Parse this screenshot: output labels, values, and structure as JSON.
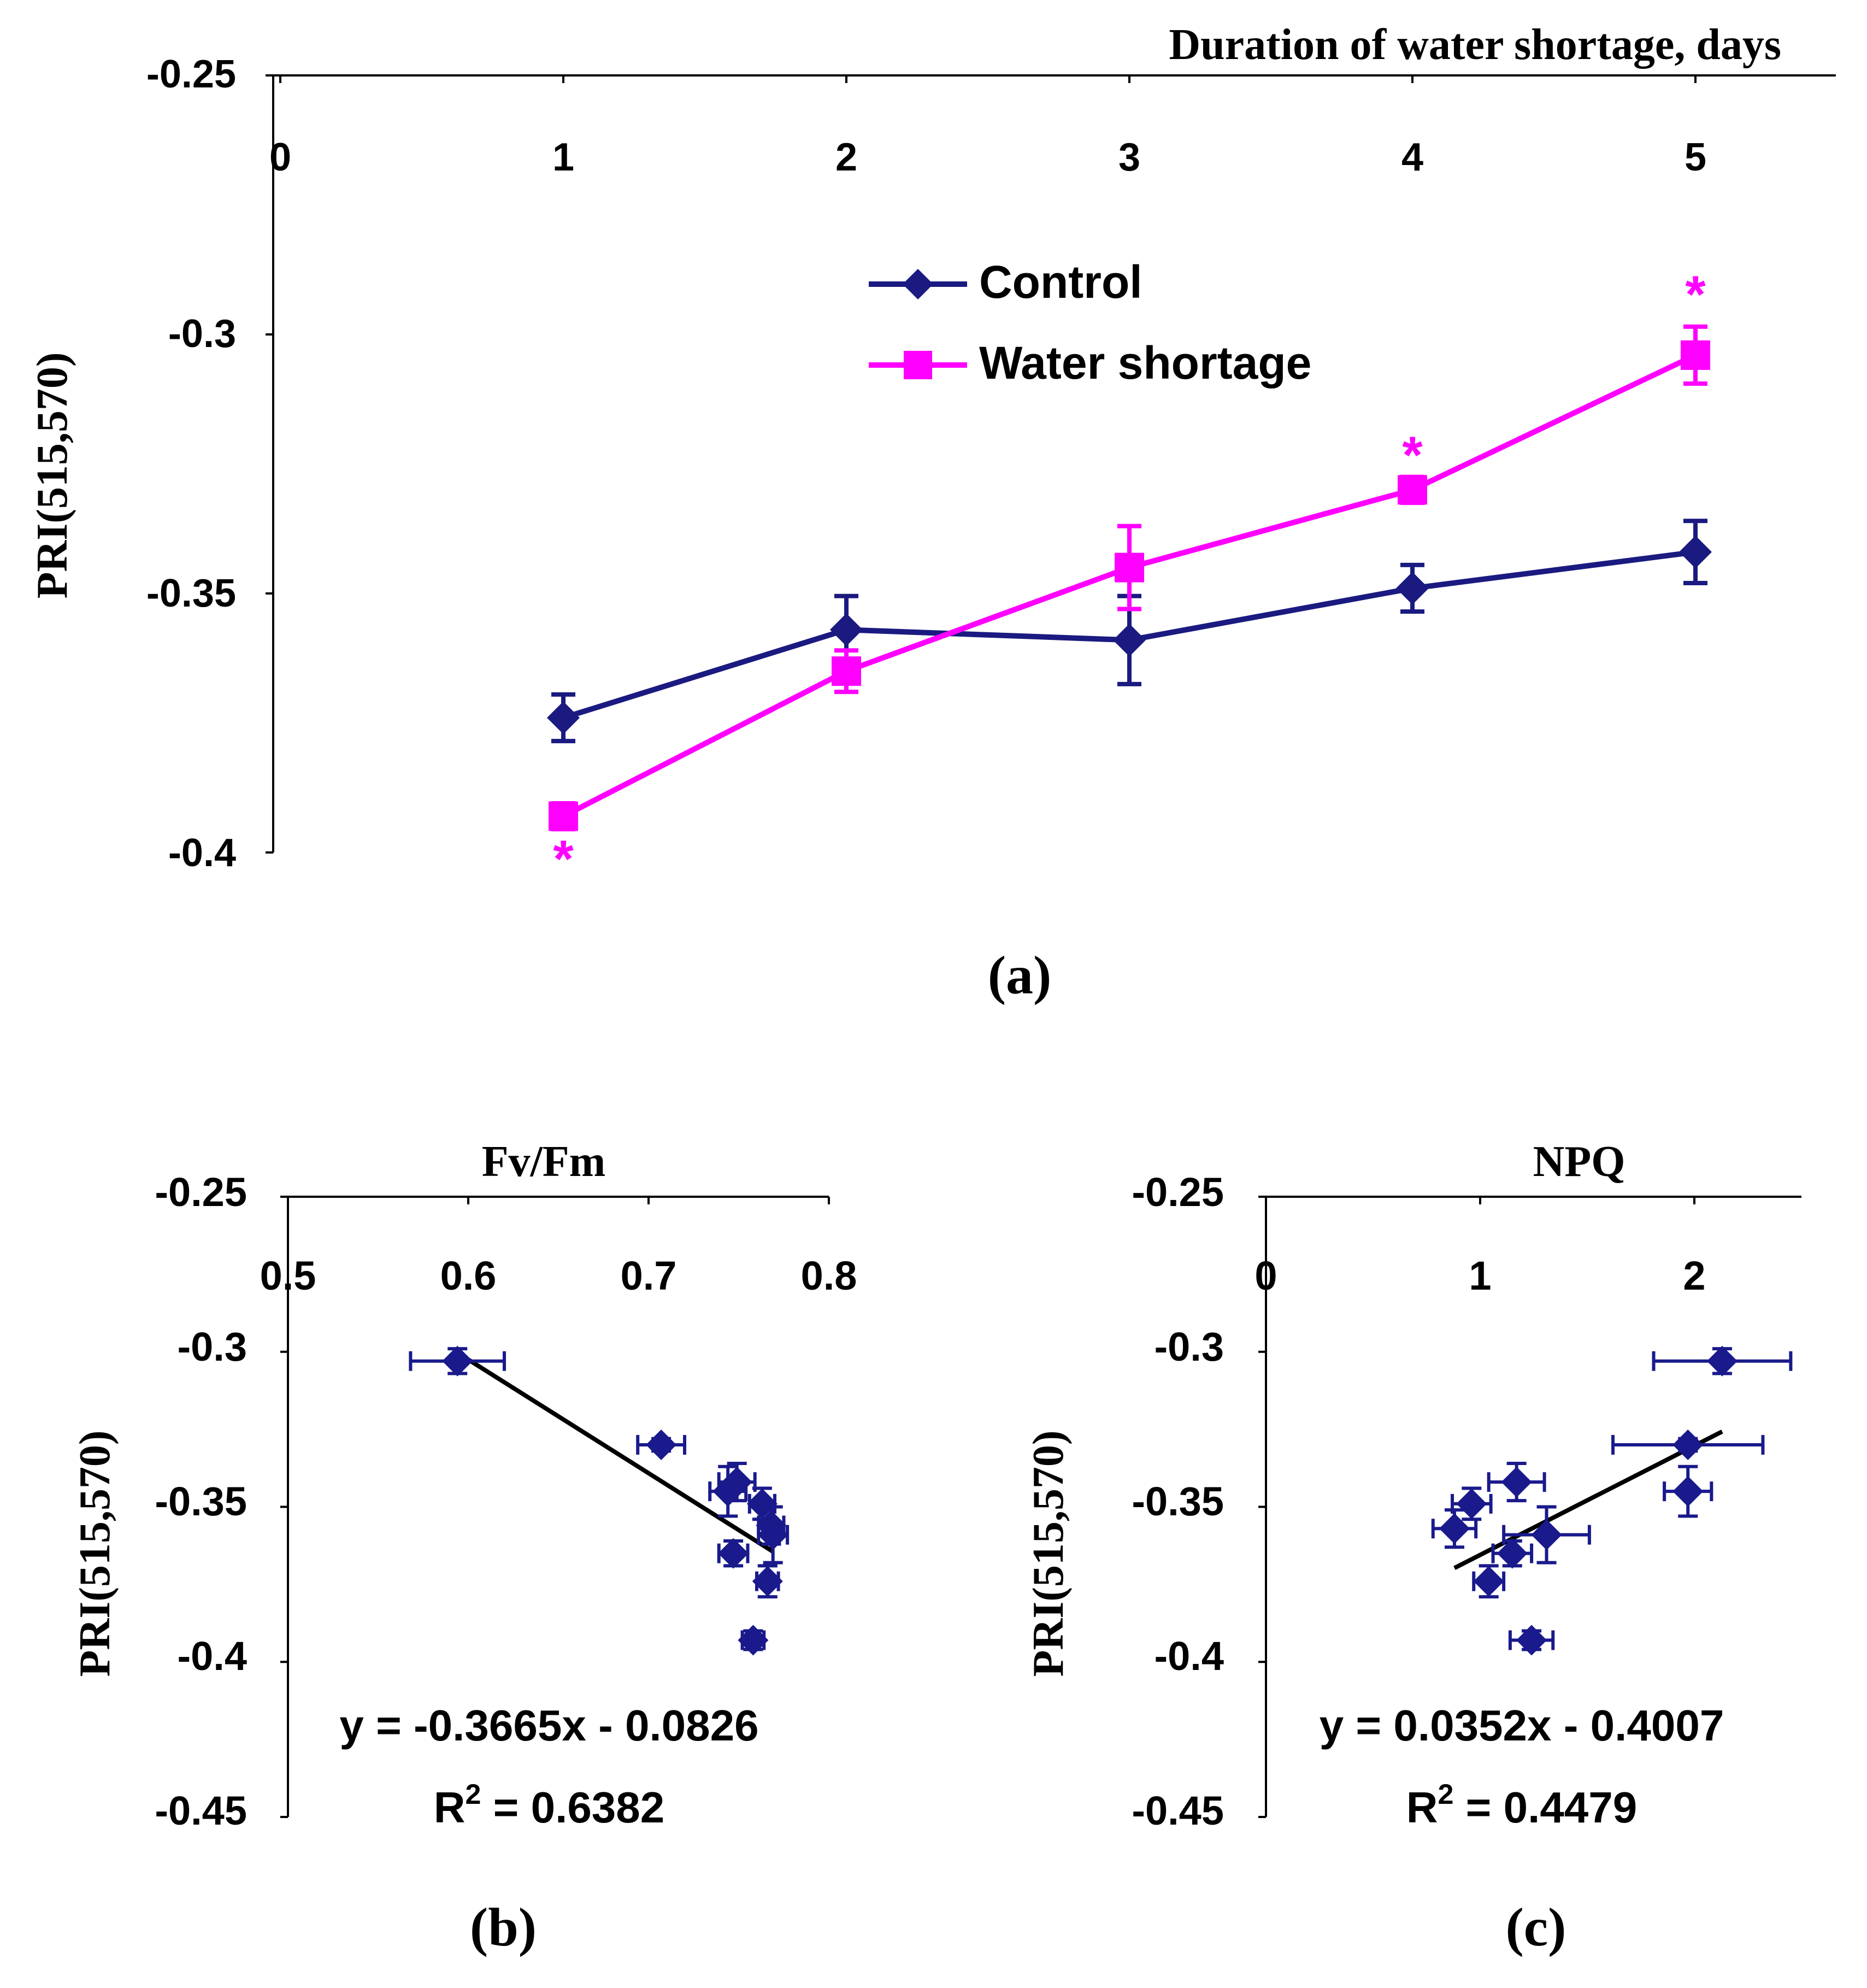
{
  "colors": {
    "control": "#1a1a80",
    "water_shortage": "#ff00ff",
    "scatter": "#1a1a8c",
    "axis": "#000000",
    "fit_line": "#000000"
  },
  "chart_data": [
    {
      "id": "a",
      "type": "line",
      "panel_label": "(a)",
      "title": "",
      "xlabel": "Duration of water shortage, days",
      "ylabel": "PRI(515,570)",
      "xlim": [
        0,
        5.5
      ],
      "ylim": [
        -0.4,
        -0.25
      ],
      "x_ticks": [
        0,
        1,
        2,
        3,
        4,
        5
      ],
      "x_tick_labels": [
        "0",
        "1",
        "2",
        "3",
        "4",
        "5"
      ],
      "y_ticks": [
        -0.25,
        -0.3,
        -0.35,
        -0.4
      ],
      "y_tick_labels": [
        "-0.25",
        "-0.3",
        "-0.35",
        "-0.4"
      ],
      "x_axis_position": "top",
      "legend_position": "upper-middle",
      "series": [
        {
          "name": "Control",
          "marker": "diamond",
          "x": [
            1,
            2,
            3,
            4,
            5
          ],
          "y": [
            -0.374,
            -0.357,
            -0.359,
            -0.349,
            -0.342
          ],
          "yerr": [
            0.0045,
            0.0065,
            0.0085,
            0.0045,
            0.006
          ]
        },
        {
          "name": "Water shortage",
          "marker": "square",
          "x": [
            1,
            2,
            3,
            4,
            5
          ],
          "y": [
            -0.393,
            -0.365,
            -0.345,
            -0.33,
            -0.304
          ],
          "yerr": [
            0.0025,
            0.004,
            0.008,
            0.0025,
            0.0055
          ]
        }
      ],
      "annotations": [
        {
          "text": "*",
          "x": 1,
          "y": -0.4005
        },
        {
          "text": "*",
          "x": 4,
          "y": -0.3225
        },
        {
          "text": "*",
          "x": 5,
          "y": -0.2915
        }
      ]
    },
    {
      "id": "b",
      "type": "scatter",
      "panel_label": "(b)",
      "title": "Fv/Fm",
      "ylabel": "PRI(515,570)",
      "xlim": [
        0.5,
        0.8
      ],
      "ylim": [
        -0.45,
        -0.25
      ],
      "x_ticks": [
        0.5,
        0.6,
        0.7,
        0.8
      ],
      "x_tick_labels": [
        "0.5",
        "0.6",
        "0.7",
        "0.8"
      ],
      "y_ticks": [
        -0.25,
        -0.3,
        -0.35,
        -0.4,
        -0.45
      ],
      "y_tick_labels": [
        "-0.25",
        "-0.3",
        "-0.35",
        "-0.4",
        "-0.45"
      ],
      "x_axis_position": "top",
      "points": [
        {
          "x": 0.594,
          "y": -0.303,
          "xerr": 0.026,
          "yerr": 0.004
        },
        {
          "x": 0.707,
          "y": -0.33,
          "xerr": 0.013,
          "yerr": 0.002
        },
        {
          "x": 0.749,
          "y": -0.342,
          "xerr": 0.01,
          "yerr": 0.006
        },
        {
          "x": 0.744,
          "y": -0.345,
          "xerr": 0.01,
          "yerr": 0.008
        },
        {
          "x": 0.763,
          "y": -0.349,
          "xerr": 0.007,
          "yerr": 0.005
        },
        {
          "x": 0.768,
          "y": -0.356,
          "xerr": 0.007,
          "yerr": 0.006
        },
        {
          "x": 0.769,
          "y": -0.359,
          "xerr": 0.008,
          "yerr": 0.009
        },
        {
          "x": 0.747,
          "y": -0.365,
          "xerr": 0.008,
          "yerr": 0.004
        },
        {
          "x": 0.766,
          "y": -0.374,
          "xerr": 0.006,
          "yerr": 0.005
        },
        {
          "x": 0.758,
          "y": -0.393,
          "xerr": 0.006,
          "yerr": 0.003
        }
      ],
      "trendline": {
        "slope": -0.3665,
        "intercept": -0.0826,
        "x_range": [
          0.594,
          0.769
        ]
      },
      "equation": "y = -0.3665x - 0.0826",
      "r2_prefix": "R",
      "r2_exp": "2",
      "r2_value": " = 0.6382"
    },
    {
      "id": "c",
      "type": "scatter",
      "panel_label": "(c)",
      "title": "NPQ",
      "ylabel": "PRI(515,570)",
      "xlim": [
        0,
        2.5
      ],
      "ylim": [
        -0.45,
        -0.25
      ],
      "x_ticks": [
        0,
        1,
        2
      ],
      "x_tick_labels": [
        "0",
        "1",
        "2"
      ],
      "y_ticks": [
        -0.25,
        -0.3,
        -0.35,
        -0.4,
        -0.45
      ],
      "y_tick_labels": [
        "-0.25",
        "-0.3",
        "-0.35",
        "-0.4",
        "-0.45"
      ],
      "x_axis_position": "top",
      "points": [
        {
          "x": 2.13,
          "y": -0.303,
          "xerr": 0.32,
          "yerr": 0.004
        },
        {
          "x": 1.97,
          "y": -0.33,
          "xerr": 0.35,
          "yerr": 0.002
        },
        {
          "x": 1.97,
          "y": -0.345,
          "xerr": 0.11,
          "yerr": 0.008
        },
        {
          "x": 1.17,
          "y": -0.342,
          "xerr": 0.13,
          "yerr": 0.006
        },
        {
          "x": 0.96,
          "y": -0.349,
          "xerr": 0.09,
          "yerr": 0.005
        },
        {
          "x": 0.88,
          "y": -0.357,
          "xerr": 0.1,
          "yerr": 0.006
        },
        {
          "x": 1.31,
          "y": -0.359,
          "xerr": 0.2,
          "yerr": 0.009
        },
        {
          "x": 1.15,
          "y": -0.365,
          "xerr": 0.09,
          "yerr": 0.004
        },
        {
          "x": 1.04,
          "y": -0.374,
          "xerr": 0.07,
          "yerr": 0.005
        },
        {
          "x": 1.24,
          "y": -0.393,
          "xerr": 0.1,
          "yerr": 0.003
        }
      ],
      "trendline": {
        "slope": 0.0352,
        "intercept": -0.4007,
        "x_range": [
          0.88,
          2.13
        ]
      },
      "equation": "y = 0.0352x - 0.4007",
      "r2_prefix": "R",
      "r2_exp": "2",
      "r2_value": " = 0.4479"
    }
  ]
}
